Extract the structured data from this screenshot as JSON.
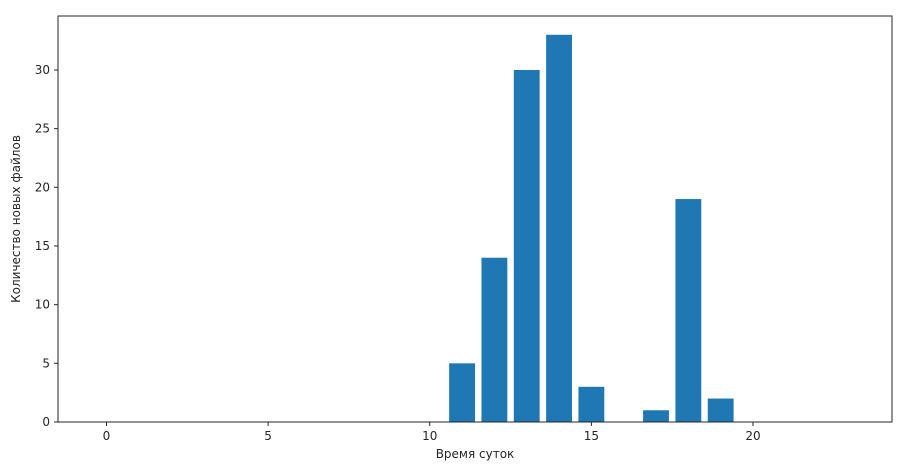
{
  "chart_data": {
    "type": "bar",
    "title": "",
    "xlabel": "Время суток",
    "ylabel": "Количество новых файлов",
    "x": [
      11,
      12,
      13,
      14,
      15,
      17,
      18,
      19
    ],
    "values": [
      5,
      14,
      30,
      33,
      3,
      1,
      19,
      2
    ],
    "bar_width": 0.8,
    "xlim": [
      -1.5,
      24.3
    ],
    "ylim": [
      0,
      34.6
    ],
    "xticks": [
      0,
      5,
      10,
      15,
      20
    ],
    "yticks": [
      0,
      5,
      10,
      15,
      20,
      25,
      30
    ],
    "grid": false,
    "bar_color": "#1f77b4"
  }
}
